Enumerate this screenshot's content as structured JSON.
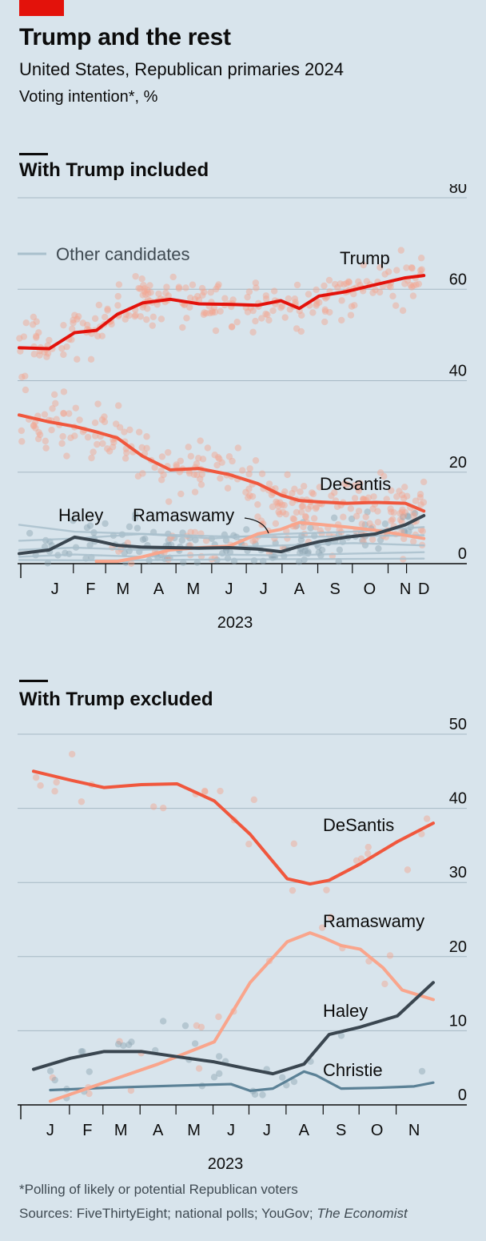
{
  "header": {
    "title": "Trump and the rest",
    "subtitle": "United States, Republican primaries 2024",
    "unit": "Voting intention*, %"
  },
  "footer": {
    "note": "*Polling of likely or potential Republican voters",
    "sources": "Sources: FiveThirtyEight; national polls; YouGov; ",
    "sources_italic": "The Economist"
  },
  "colors": {
    "background": "#d8e4ec",
    "trump": "#e3120b",
    "desantis": "#f0573d",
    "ramaswamy": "#f9a58c",
    "haley": "#3a4650",
    "christie": "#5b8196",
    "others": "#a9bfcc",
    "dots_red": "#f4a38f",
    "dots_grey": "#8ba3b2",
    "grid": "#a6b8c4"
  },
  "chart_data": [
    {
      "type": "line",
      "title": "With Trump included",
      "ylim": [
        0,
        80
      ],
      "yticks": [
        0,
        20,
        40,
        60,
        80
      ],
      "xlim": [
        "2022-12-15",
        "2023-12-05"
      ],
      "xticks": [
        {
          "label": "J",
          "date": "2023-01-15"
        },
        {
          "label": "F",
          "date": "2023-02-15"
        },
        {
          "label": "M",
          "date": "2023-03-15"
        },
        {
          "label": "A",
          "date": "2023-04-15"
        },
        {
          "label": "M",
          "date": "2023-05-15"
        },
        {
          "label": "J",
          "date": "2023-06-15"
        },
        {
          "label": "J",
          "date": "2023-07-15"
        },
        {
          "label": "A",
          "date": "2023-08-15"
        },
        {
          "label": "S",
          "date": "2023-09-15"
        },
        {
          "label": "O",
          "date": "2023-10-15"
        },
        {
          "label": "N",
          "date": "2023-11-15"
        },
        {
          "label": "D",
          "date": "2023-12-01"
        }
      ],
      "year_label": "2023",
      "legend": {
        "label": "Other candidates"
      },
      "series": [
        {
          "name": "Trump",
          "color_key": "trump",
          "x": [
            "2022-12-15",
            "2023-01-10",
            "2023-02-01",
            "2023-02-20",
            "2023-03-10",
            "2023-04-01",
            "2023-04-25",
            "2023-05-20",
            "2023-06-15",
            "2023-07-10",
            "2023-07-30",
            "2023-08-15",
            "2023-09-01",
            "2023-09-25",
            "2023-10-20",
            "2023-11-15",
            "2023-12-01"
          ],
          "values": [
            47.2,
            47.0,
            50.5,
            51.0,
            54.5,
            57.0,
            57.8,
            56.8,
            56.7,
            56.5,
            57.5,
            55.8,
            58.5,
            59.5,
            61.0,
            62.5,
            63.0
          ]
        },
        {
          "name": "DeSantis",
          "color_key": "desantis",
          "x": [
            "2022-12-15",
            "2023-01-10",
            "2023-02-01",
            "2023-02-20",
            "2023-03-10",
            "2023-04-01",
            "2023-04-25",
            "2023-05-20",
            "2023-06-15",
            "2023-07-10",
            "2023-07-30",
            "2023-08-15",
            "2023-09-01",
            "2023-09-25",
            "2023-10-20",
            "2023-11-15",
            "2023-12-01"
          ],
          "values": [
            32.5,
            31.0,
            30.0,
            28.8,
            27.5,
            23.5,
            20.5,
            20.8,
            19.5,
            17.5,
            15.0,
            13.8,
            13.5,
            13.2,
            13.4,
            13.2,
            11.5
          ]
        },
        {
          "name": "Haley",
          "color_key": "haley",
          "x": [
            "2022-12-15",
            "2023-01-10",
            "2023-02-01",
            "2023-02-20",
            "2023-03-10",
            "2023-04-01",
            "2023-04-25",
            "2023-05-20",
            "2023-06-15",
            "2023-07-10",
            "2023-07-30",
            "2023-08-15",
            "2023-09-01",
            "2023-09-25",
            "2023-10-20",
            "2023-11-15",
            "2023-12-01"
          ],
          "values": [
            2.2,
            3.0,
            5.8,
            5.0,
            4.0,
            3.6,
            3.5,
            3.4,
            3.5,
            3.2,
            2.6,
            3.8,
            4.8,
            5.8,
            6.5,
            8.5,
            10.5
          ]
        },
        {
          "name": "Ramaswamy",
          "color_key": "ramaswamy",
          "x": [
            "2023-02-20",
            "2023-03-10",
            "2023-04-01",
            "2023-04-25",
            "2023-05-20",
            "2023-06-15",
            "2023-07-10",
            "2023-07-30",
            "2023-08-15",
            "2023-09-01",
            "2023-09-25",
            "2023-10-20",
            "2023-11-15",
            "2023-12-01"
          ],
          "values": [
            0.5,
            0.5,
            1.5,
            3.0,
            3.5,
            3.8,
            6.5,
            7.5,
            9.0,
            8.6,
            8.0,
            7.3,
            6.2,
            5.5
          ]
        },
        {
          "name": "Other 1",
          "color_key": "others",
          "x": [
            "2022-12-15",
            "2023-02-01",
            "2023-04-01",
            "2023-06-01",
            "2023-08-01",
            "2023-10-01",
            "2023-12-01"
          ],
          "values": [
            8.5,
            7.0,
            6.5,
            6.0,
            5.8,
            6.0,
            6.2
          ]
        },
        {
          "name": "Other 2",
          "color_key": "others",
          "x": [
            "2022-12-15",
            "2023-02-01",
            "2023-04-01",
            "2023-06-01",
            "2023-08-01",
            "2023-10-01",
            "2023-12-01"
          ],
          "values": [
            5.0,
            5.5,
            6.5,
            5.5,
            6.5,
            7.0,
            8.0
          ]
        },
        {
          "name": "Other 3",
          "color_key": "others",
          "x": [
            "2022-12-15",
            "2023-02-01",
            "2023-04-01",
            "2023-06-01",
            "2023-08-01",
            "2023-10-01",
            "2023-12-01"
          ],
          "values": [
            3.0,
            3.5,
            3.0,
            3.5,
            4.0,
            4.5,
            4.0
          ]
        },
        {
          "name": "Other 4",
          "color_key": "others",
          "x": [
            "2022-12-15",
            "2023-02-01",
            "2023-04-01",
            "2023-06-01",
            "2023-08-01",
            "2023-10-01",
            "2023-12-01"
          ],
          "values": [
            1.5,
            2.0,
            1.5,
            2.0,
            1.8,
            2.2,
            2.5
          ]
        },
        {
          "name": "Other 5",
          "color_key": "others",
          "x": [
            "2022-12-15",
            "2023-03-01",
            "2023-06-01",
            "2023-09-01",
            "2023-12-01"
          ],
          "values": [
            0.8,
            0.7,
            0.9,
            1.0,
            1.1
          ]
        }
      ],
      "labels": [
        {
          "text": "Trump",
          "series": "Trump"
        },
        {
          "text": "DeSantis",
          "series": "DeSantis"
        },
        {
          "text": "Haley",
          "series": "Haley"
        },
        {
          "text": "Ramaswamy",
          "series": "Ramaswamy"
        }
      ]
    },
    {
      "type": "line",
      "title": "With Trump excluded",
      "ylim": [
        0,
        50
      ],
      "yticks": [
        0,
        10,
        20,
        30,
        40,
        50
      ],
      "xlim": [
        "2022-12-20",
        "2023-12-05"
      ],
      "xticks": [
        {
          "label": "J",
          "date": "2023-01-15"
        },
        {
          "label": "F",
          "date": "2023-02-15"
        },
        {
          "label": "M",
          "date": "2023-03-15"
        },
        {
          "label": "A",
          "date": "2023-04-15"
        },
        {
          "label": "M",
          "date": "2023-05-15"
        },
        {
          "label": "J",
          "date": "2023-06-15"
        },
        {
          "label": "J",
          "date": "2023-07-15"
        },
        {
          "label": "A",
          "date": "2023-08-15"
        },
        {
          "label": "S",
          "date": "2023-09-15"
        },
        {
          "label": "O",
          "date": "2023-10-15"
        },
        {
          "label": "N",
          "date": "2023-11-15"
        }
      ],
      "year_label": "2023",
      "series": [
        {
          "name": "DeSantis",
          "color_key": "desantis",
          "x": [
            "2023-01-01",
            "2023-02-01",
            "2023-03-01",
            "2023-04-01",
            "2023-05-01",
            "2023-06-01",
            "2023-07-01",
            "2023-08-01",
            "2023-08-20",
            "2023-09-05",
            "2023-10-01",
            "2023-11-01",
            "2023-12-01"
          ],
          "values": [
            45.0,
            43.8,
            42.8,
            43.2,
            43.3,
            41.0,
            36.5,
            30.5,
            29.8,
            30.3,
            32.5,
            35.5,
            38.0
          ]
        },
        {
          "name": "Ramaswamy",
          "color_key": "ramaswamy",
          "x": [
            "2023-01-15",
            "2023-03-01",
            "2023-04-15",
            "2023-06-01",
            "2023-07-01",
            "2023-08-01",
            "2023-08-20",
            "2023-09-01",
            "2023-09-15",
            "2023-10-01",
            "2023-10-20",
            "2023-11-05",
            "2023-12-01"
          ],
          "values": [
            0.5,
            3.0,
            5.5,
            8.5,
            16.5,
            22.0,
            23.2,
            22.5,
            21.5,
            21.0,
            18.5,
            15.5,
            14.2
          ]
        },
        {
          "name": "Haley",
          "color_key": "haley",
          "x": [
            "2023-01-01",
            "2023-02-01",
            "2023-03-01",
            "2023-04-01",
            "2023-05-01",
            "2023-06-01",
            "2023-07-01",
            "2023-07-20",
            "2023-08-15",
            "2023-09-05",
            "2023-10-01",
            "2023-11-01",
            "2023-12-01"
          ],
          "values": [
            4.8,
            6.3,
            7.2,
            7.2,
            6.5,
            5.8,
            4.8,
            4.2,
            5.5,
            9.5,
            10.5,
            12.0,
            16.5
          ]
        },
        {
          "name": "Christie",
          "color_key": "christie",
          "x": [
            "2023-01-15",
            "2023-03-01",
            "2023-05-01",
            "2023-06-15",
            "2023-07-01",
            "2023-07-20",
            "2023-08-15",
            "2023-08-25",
            "2023-09-15",
            "2023-10-15",
            "2023-11-15",
            "2023-12-01"
          ],
          "values": [
            2.0,
            2.3,
            2.6,
            2.8,
            1.9,
            2.2,
            4.5,
            4.0,
            2.2,
            2.3,
            2.5,
            3.0
          ]
        }
      ],
      "labels": [
        {
          "text": "DeSantis",
          "series": "DeSantis"
        },
        {
          "text": "Ramaswamy",
          "series": "Ramaswamy"
        },
        {
          "text": "Haley",
          "series": "Haley"
        },
        {
          "text": "Christie",
          "series": "Christie"
        }
      ]
    }
  ]
}
